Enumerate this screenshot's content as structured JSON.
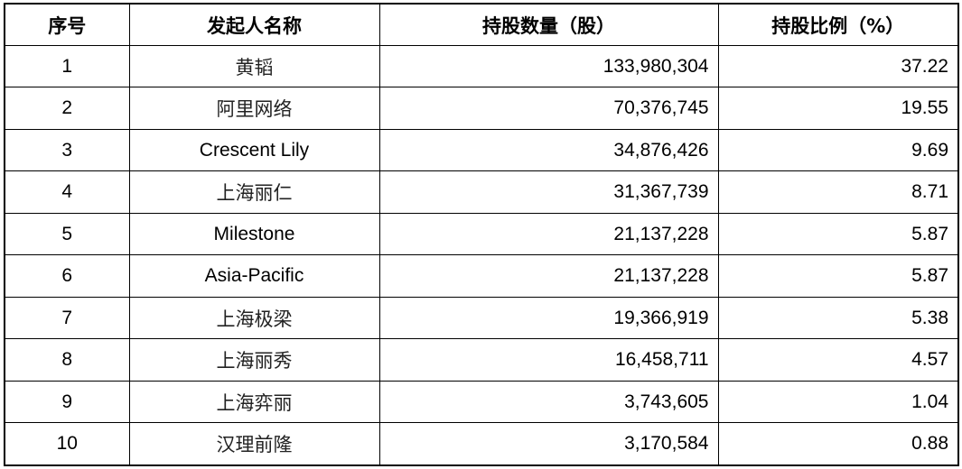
{
  "table": {
    "headers": [
      "序号",
      "发起人名称",
      "持股数量（股）",
      "持股比例（%）"
    ],
    "rows": [
      {
        "index": "1",
        "name": "黄韬",
        "shares": "133,980,304",
        "ratio": "37.22",
        "cjk": true
      },
      {
        "index": "2",
        "name": "阿里网络",
        "shares": "70,376,745",
        "ratio": "19.55",
        "cjk": true
      },
      {
        "index": "3",
        "name": "Crescent Lily",
        "shares": "34,876,426",
        "ratio": "9.69",
        "cjk": false
      },
      {
        "index": "4",
        "name": "上海丽仁",
        "shares": "31,367,739",
        "ratio": "8.71",
        "cjk": true
      },
      {
        "index": "5",
        "name": "Milestone",
        "shares": "21,137,228",
        "ratio": "5.87",
        "cjk": false
      },
      {
        "index": "6",
        "name": "Asia-Pacific",
        "shares": "21,137,228",
        "ratio": "5.87",
        "cjk": false
      },
      {
        "index": "7",
        "name": "上海极梁",
        "shares": "19,366,919",
        "ratio": "5.38",
        "cjk": true
      },
      {
        "index": "8",
        "name": "上海丽秀",
        "shares": "16,458,711",
        "ratio": "4.57",
        "cjk": true
      },
      {
        "index": "9",
        "name": "上海弈丽",
        "shares": "3,743,605",
        "ratio": "1.04",
        "cjk": true
      },
      {
        "index": "10",
        "name": "汉理前隆",
        "shares": "3,170,584",
        "ratio": "0.88",
        "cjk": true
      }
    ]
  }
}
